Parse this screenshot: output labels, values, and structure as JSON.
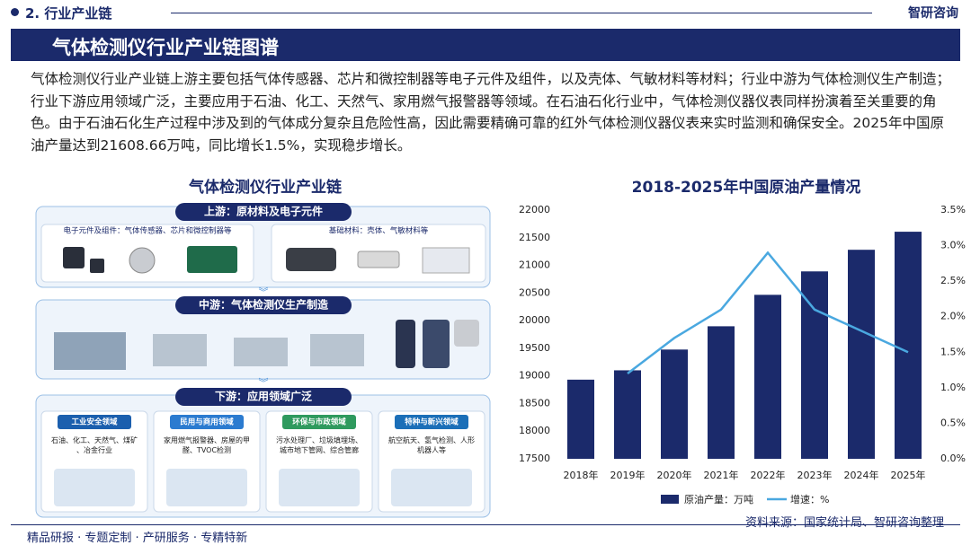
{
  "header": {
    "section": "2. 行业产业链",
    "logo": "智研咨询",
    "title": "气体检测仪行业产业链图谱"
  },
  "paragraph": "气体检测仪行业产业链上游主要包括气体传感器、芯片和微控制器等电子元件及组件，以及壳体、气敏材料等材料；行业中游为气体检测仪生产制造；行业下游应用领域广泛，主要应用于石油、化工、天然气、家用燃气报警器等领域。在石油石化行业中，气体检测仪器仪表同样扮演着至关重要的角色。由于石油石化生产过程中涉及到的气体成分复杂且危险性高，因此需要精确可靠的红外气体检测仪器仪表来实时监测和确保安全。2025年中国原油产量达到21608.66万吨，同比增长1.5%，实现稳步增长。",
  "diagram": {
    "title": "气体检测仪行业产业链",
    "upstream": {
      "label": "上游：原材料及电子元件",
      "left": "电子元件及组件：气体传感器、芯片和微控制器等",
      "right": "基础材料：壳体、气敏材料等"
    },
    "midstream": {
      "label": "中游：气体检测仪生产制造"
    },
    "downstream": {
      "label": "下游：应用领域广泛",
      "cards": [
        {
          "title": "工业安全领域",
          "text": "石油、化工、天然气、煤矿、冶金行业"
        },
        {
          "title": "民用与商用领域",
          "text": "家用燃气报警器、房屋的甲醛、TVOC检测"
        },
        {
          "title": "环保与市政领域",
          "text": "污水处理厂、垃圾填埋场、城市地下管网、综合管廊"
        },
        {
          "title": "特种与新兴领域",
          "text": "航空航天、氢气检测、人形机器人等"
        }
      ]
    }
  },
  "chart_data": {
    "type": "bar",
    "title": "2018-2025年中国原油产量情况",
    "categories": [
      "2018年",
      "2019年",
      "2020年",
      "2021年",
      "2022年",
      "2023年",
      "2024年",
      "2025年"
    ],
    "series": [
      {
        "name": "原油产量：万吨",
        "color": "#1b2a6b",
        "type": "bar",
        "values": [
          18932,
          19101,
          19477,
          19898,
          20467,
          20891,
          21282,
          21608.66
        ]
      },
      {
        "name": "增速：%",
        "color": "#4aa8e0",
        "type": "line",
        "axis": "y2",
        "values": [
          null,
          1.2,
          1.7,
          2.1,
          2.9,
          2.1,
          1.8,
          1.5
        ]
      }
    ],
    "ylim": [
      17500,
      22000
    ],
    "yticks": [
      17500,
      18000,
      18500,
      19000,
      19500,
      20000,
      20500,
      21000,
      21500,
      22000
    ],
    "y2lim": [
      0,
      3.5
    ],
    "y2ticks": [
      {
        "value": 0,
        "label": "0.0%"
      },
      {
        "value": 0.5,
        "label": "0.5%"
      },
      {
        "value": 1,
        "label": "1.0%"
      },
      {
        "value": 1.5,
        "label": "1.5%"
      },
      {
        "value": 2,
        "label": "2.0%"
      },
      {
        "value": 2.5,
        "label": "2.5%"
      },
      {
        "value": 3,
        "label": "3.0%"
      },
      {
        "value": 3.5,
        "label": "3.5%"
      }
    ],
    "grid": false,
    "legend": "bottom"
  },
  "footer": {
    "left": "精品研报 · 专题定制 · 产研服务 · 专精特新",
    "source": "资料来源：国家统计局、智研咨询整理"
  }
}
